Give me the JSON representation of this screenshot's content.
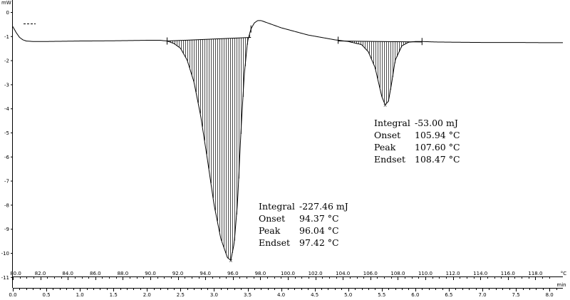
{
  "chart_data": {
    "type": "line",
    "y_unit": "mW",
    "x_unit_temp": "°C",
    "x_unit_time": "min",
    "ylim": [
      -11,
      0.5
    ],
    "y_ticks": [
      0,
      -1,
      -2,
      -3,
      -4,
      -5,
      -6,
      -7,
      -8,
      -9,
      -10,
      -11
    ],
    "y_tick_labels": [
      "0",
      "-1",
      "-2",
      "-3",
      "-4",
      "-5",
      "-6",
      "-7",
      "-8",
      "-9",
      "-10",
      "-11"
    ],
    "temp_axis": {
      "range": [
        80,
        120
      ],
      "ticks": [
        80,
        82,
        84,
        86,
        88,
        90,
        92,
        94,
        96,
        98,
        100,
        102,
        104,
        106,
        108,
        110,
        112,
        114,
        116,
        118
      ],
      "tick_labels": [
        "80.0",
        "82.0",
        "84.0",
        "86.0",
        "88.0",
        "90.0",
        "92.0",
        "94.0",
        "96.0",
        "98.0",
        "100.0",
        "102.0",
        "104.0",
        "106.0",
        "108.0",
        "110.0",
        "112.0",
        "114.0",
        "116.0",
        "118.0"
      ]
    },
    "time_axis": {
      "range": [
        0,
        8.2
      ],
      "ticks": [
        0,
        0.5,
        1,
        1.5,
        2,
        2.5,
        3,
        3.5,
        4,
        4.5,
        5,
        5.5,
        6,
        6.5,
        7,
        7.5,
        8
      ],
      "tick_labels": [
        "0.0",
        "0.5",
        "1.0",
        "1.5",
        "2.0",
        "2.5",
        "3.0",
        "3.5",
        "4.0",
        "4.5",
        "5.0",
        "5.5",
        "6.0",
        "6.5",
        "7.0",
        "7.5",
        "8.0"
      ]
    },
    "series": [
      {
        "x_min": [
          0.0,
          0.05,
          0.1,
          0.15,
          0.2,
          0.3,
          0.5,
          1.0,
          1.5,
          2.0,
          2.2,
          2.3,
          2.4,
          2.5,
          2.6,
          2.7,
          2.8,
          2.9,
          3.0,
          3.1,
          3.2,
          3.25,
          3.3,
          3.35,
          3.4,
          3.45,
          3.5,
          3.55,
          3.6,
          3.65,
          3.7,
          3.75,
          3.85,
          4.0,
          4.2,
          4.4,
          4.6,
          4.8,
          5.0,
          5.2,
          5.3,
          5.4,
          5.45,
          5.5,
          5.55,
          5.6,
          5.65,
          5.7,
          5.8,
          5.9,
          6.0,
          6.1,
          6.3,
          6.6,
          7.0,
          7.5,
          8.0,
          8.2
        ],
        "y_mw": [
          -0.6,
          -0.85,
          -1.05,
          -1.15,
          -1.2,
          -1.22,
          -1.22,
          -1.2,
          -1.19,
          -1.17,
          -1.17,
          -1.2,
          -1.3,
          -1.5,
          -2.0,
          -2.9,
          -4.3,
          -6.1,
          -8.0,
          -9.4,
          -10.2,
          -10.3,
          -9.6,
          -7.9,
          -5.0,
          -2.6,
          -1.2,
          -0.7,
          -0.45,
          -0.35,
          -0.35,
          -0.4,
          -0.5,
          -0.65,
          -0.8,
          -0.95,
          -1.05,
          -1.15,
          -1.22,
          -1.35,
          -1.65,
          -2.3,
          -2.9,
          -3.5,
          -3.85,
          -3.7,
          -2.9,
          -2.0,
          -1.4,
          -1.25,
          -1.22,
          -1.22,
          -1.24,
          -1.25,
          -1.26,
          -1.26,
          -1.27,
          -1.27
        ]
      }
    ],
    "integration_markers_min": [
      2.3,
      3.55,
      4.85,
      6.1
    ],
    "peaks": [
      {
        "integral_label": "Integral",
        "integral_value": "-227.46 mJ",
        "onset_label": "Onset",
        "onset_value": "94.37 °C",
        "peak_label": "Peak",
        "peak_value": "96.04 °C",
        "endset_label": "Endset",
        "endset_value": "97.42 °C",
        "x_start_min": 2.3,
        "x_end_min": 3.55,
        "baseline_start_mw": -1.2,
        "baseline_end_mw": -1.05,
        "peak_x_min": 3.25,
        "peak_y_mw": -10.3
      },
      {
        "integral_label": "Integral",
        "integral_value": "-53.00 mJ",
        "onset_label": "Onset",
        "onset_value": "105.94 °C",
        "peak_label": "Peak",
        "peak_value": "107.60 °C",
        "endset_label": "Endset",
        "endset_value": "108.47 °C",
        "x_start_min": 4.85,
        "x_end_min": 6.1,
        "baseline_start_mw": -1.2,
        "baseline_end_mw": -1.24,
        "peak_x_min": 5.55,
        "peak_y_mw": -3.85
      }
    ]
  }
}
